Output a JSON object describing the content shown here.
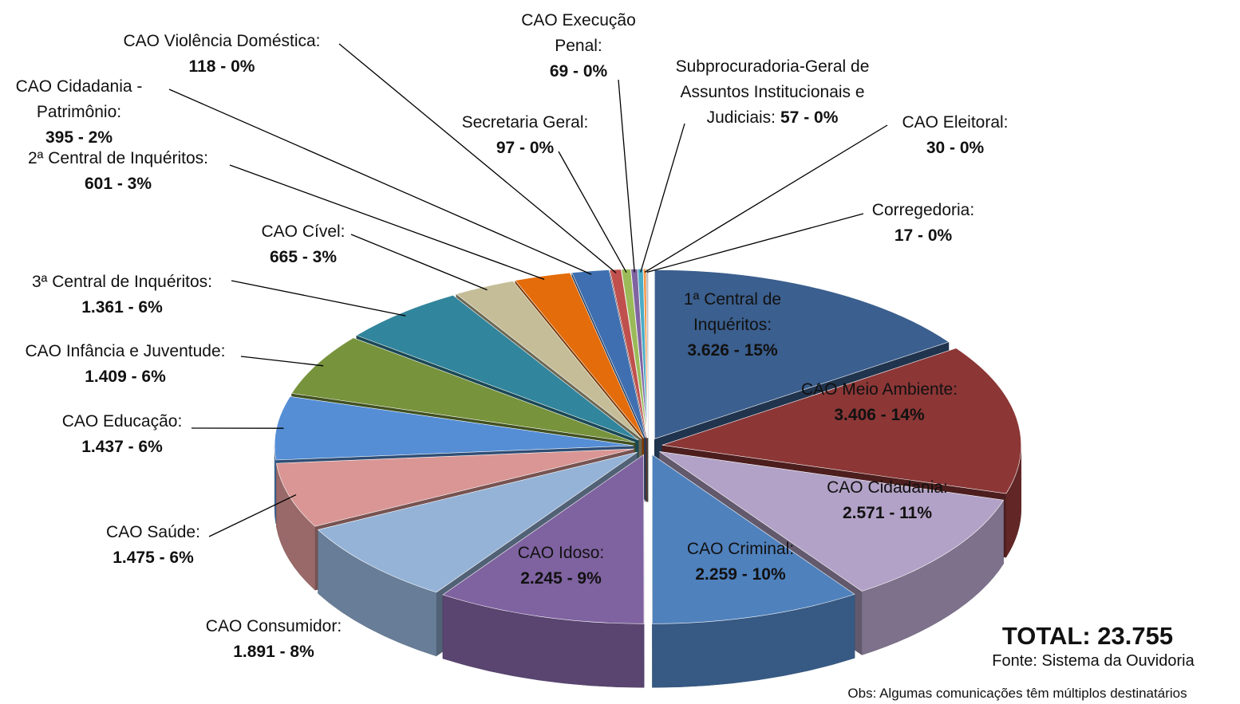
{
  "chart_data": {
    "type": "pie",
    "categories": [
      "1ª Central de Inquéritos:",
      "CAO Meio Ambiente:",
      "CAO Cidadania:",
      "CAO Criminal:",
      "CAO Idoso:",
      "CAO Consumidor:",
      "CAO Saúde:",
      "CAO Educação:",
      "CAO Infância e Juventude:",
      "3ª Central de Inquéritos:",
      "CAO Cível:",
      "2ª Central de Inquéritos:",
      "CAO Cidadania - Patrimônio:",
      "CAO Violência Doméstica:",
      "Secretaria Geral:",
      "CAO Execução Penal:",
      "Subprocuradoria-Geral de Assuntos Institucionais e Judiciais:",
      "CAO Eleitoral:",
      "Corregedoria:"
    ],
    "values": [
      3626,
      3406,
      2571,
      2259,
      2245,
      1891,
      1475,
      1437,
      1409,
      1361,
      665,
      601,
      395,
      118,
      97,
      69,
      57,
      30,
      17
    ],
    "value_labels": [
      "3.626 - 15%",
      "3.406 - 14%",
      "2.571 - 11%",
      "2.259 - 10%",
      "2.245 - 9%",
      "1.891 - 8%",
      "1.475 - 6%",
      "1.437 - 6%",
      "1.409 - 6%",
      "1.361 - 6%",
      "665 - 3%",
      "601 - 3%",
      "395 - 2%",
      "118 - 0%",
      "97 - 0%",
      "69 - 0%",
      "57 - 0%",
      "30 - 0%",
      "17 - 0%"
    ],
    "colors": [
      "#3b5f8e",
      "#8c3636",
      "#b3a2c7",
      "#4f81bd",
      "#7f62a0",
      "#95b3d7",
      "#d99694",
      "#558ed5",
      "#77933c",
      "#31859c",
      "#c4bd97",
      "#e46c0a",
      "#3f6fb0",
      "#c0504d",
      "#9bbb59",
      "#8064a2",
      "#4bacc6",
      "#f79646",
      "#a6a6a6"
    ],
    "total": "TOTAL: 23.755",
    "source": "Fonte: Sistema da Ouvidoria",
    "note": "Obs: Algumas comunicações têm múltiplos destinatários"
  }
}
